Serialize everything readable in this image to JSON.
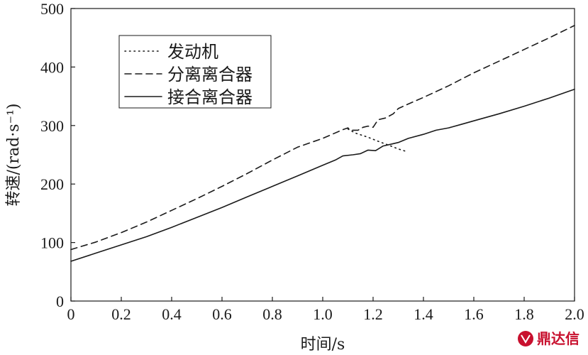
{
  "chart_data": {
    "type": "line",
    "xlabel": "时间/s",
    "ylabel": "转速/(rad·s⁻¹)",
    "xlim": [
      0,
      2.0
    ],
    "ylim": [
      0,
      500
    ],
    "xticks": [
      "0",
      "0.2",
      "0.4",
      "0.6",
      "0.8",
      "1.0",
      "1.2",
      "1.4",
      "1.6",
      "1.8",
      "2.0"
    ],
    "yticks": [
      "0",
      "100",
      "200",
      "300",
      "400",
      "500"
    ],
    "grid": false,
    "legend_position": "top-left",
    "series": [
      {
        "name": "发动机",
        "style": "dotted",
        "color": "#1a1a1a",
        "points": [
          [
            1.1,
            294
          ],
          [
            1.13,
            287
          ],
          [
            1.18,
            280
          ],
          [
            1.22,
            273
          ],
          [
            1.27,
            265
          ],
          [
            1.3,
            260
          ],
          [
            1.33,
            256
          ]
        ]
      },
      {
        "name": "分离离合器",
        "style": "dashed",
        "color": "#1a1a1a",
        "points": [
          [
            0.0,
            88
          ],
          [
            0.1,
            101
          ],
          [
            0.2,
            117
          ],
          [
            0.3,
            135
          ],
          [
            0.4,
            155
          ],
          [
            0.5,
            175
          ],
          [
            0.6,
            196
          ],
          [
            0.7,
            218
          ],
          [
            0.8,
            241
          ],
          [
            0.9,
            263
          ],
          [
            1.0,
            278
          ],
          [
            1.08,
            293
          ],
          [
            1.1,
            296
          ],
          [
            1.11,
            292
          ],
          [
            1.14,
            292
          ],
          [
            1.16,
            297
          ],
          [
            1.18,
            299
          ],
          [
            1.2,
            297
          ],
          [
            1.22,
            310
          ],
          [
            1.25,
            313
          ],
          [
            1.28,
            320
          ],
          [
            1.3,
            329
          ],
          [
            1.33,
            335
          ],
          [
            1.4,
            348
          ],
          [
            1.5,
            368
          ],
          [
            1.6,
            390
          ],
          [
            1.7,
            410
          ],
          [
            1.8,
            430
          ],
          [
            1.9,
            450
          ],
          [
            2.0,
            471
          ]
        ]
      },
      {
        "name": "接合离合器",
        "style": "solid",
        "color": "#1a1a1a",
        "points": [
          [
            0.0,
            68
          ],
          [
            0.1,
            82
          ],
          [
            0.2,
            96
          ],
          [
            0.3,
            110
          ],
          [
            0.4,
            126
          ],
          [
            0.5,
            143
          ],
          [
            0.6,
            160
          ],
          [
            0.7,
            178
          ],
          [
            0.8,
            196
          ],
          [
            0.9,
            214
          ],
          [
            1.0,
            232
          ],
          [
            1.05,
            241
          ],
          [
            1.08,
            248
          ],
          [
            1.12,
            250
          ],
          [
            1.15,
            252
          ],
          [
            1.18,
            258
          ],
          [
            1.21,
            257
          ],
          [
            1.24,
            265
          ],
          [
            1.27,
            268
          ],
          [
            1.3,
            271
          ],
          [
            1.34,
            278
          ],
          [
            1.4,
            285
          ],
          [
            1.45,
            292
          ],
          [
            1.5,
            296
          ],
          [
            1.55,
            302
          ],
          [
            1.6,
            308
          ],
          [
            1.7,
            320
          ],
          [
            1.8,
            333
          ],
          [
            1.9,
            347
          ],
          [
            2.0,
            362
          ]
        ]
      }
    ]
  },
  "watermark": {
    "text": "鼎达信",
    "color": "#c8102e"
  }
}
